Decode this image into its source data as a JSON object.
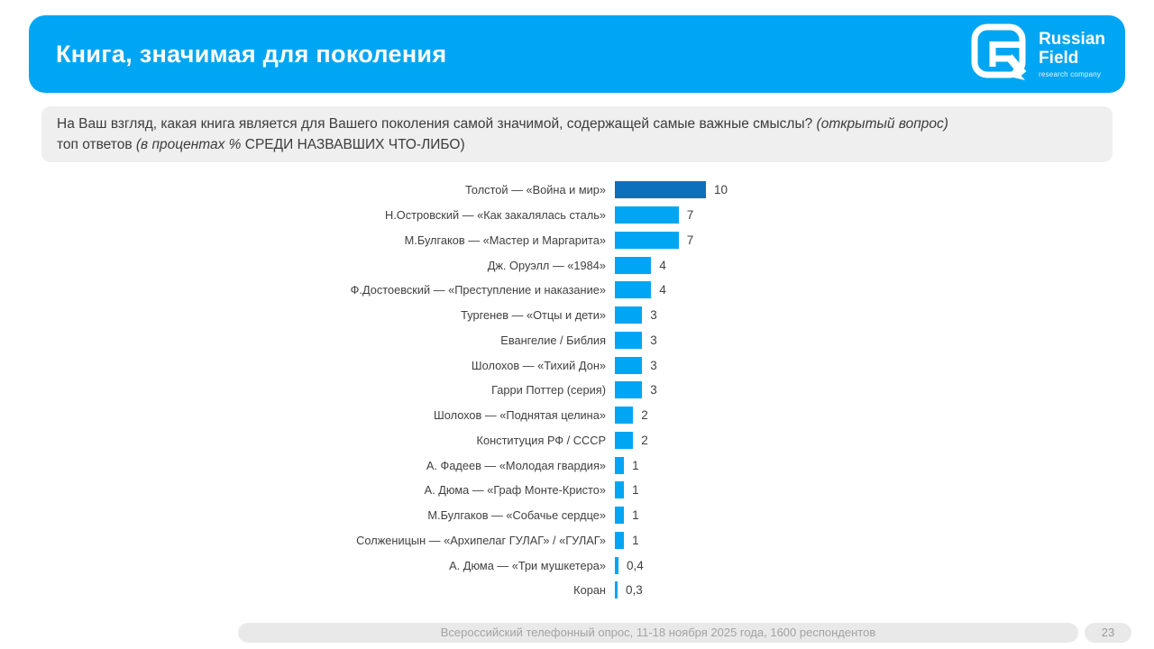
{
  "header": {
    "title": "Книга, значимая для поколения",
    "background_color": "#00a6f3",
    "logo": {
      "name_line1": "Russian",
      "name_line2": "Field",
      "tagline": "research company"
    }
  },
  "question": {
    "line1_text": "На Ваш взгляд, какая книга является для Вашего поколения самой значимой, содержащей самые важные смыслы? ",
    "line1_note": "(открытый вопрос)",
    "line2_text": "топ ответов ",
    "line2_italic": "(в процентах % ",
    "line2_caps": "СРЕДИ НАЗВАВШИХ ЧТО-ЛИБО)"
  },
  "chart_data": {
    "type": "bar",
    "orientation": "horizontal",
    "title": "Книга, значимая для поколения",
    "xlabel": "",
    "ylabel": "",
    "grid": false,
    "xlim": [
      0,
      12
    ],
    "categories": [
      "Толстой — «Война и мир»",
      "Н.Островский — «Как закалялась сталь»",
      "М.Булгаков — «Мастер и Маргарита»",
      "Дж. Оруэлл — «1984»",
      "Ф.Достоевский — «Преступление и наказание»",
      "Тургенев — «Отцы и дети»",
      "Евангелие / Библия",
      "Шолохов — «Тихий Дон»",
      "Гарри Поттер (серия)",
      "Шолохов — «Поднятая целина»",
      "Конституция РФ / СССР",
      "А. Фадеев — «Молодая гвардия»",
      "А. Дюма — «Граф Монте-Кристо»",
      "М.Булгаков — «Собачье сердце»",
      "Солженицын — «Архипелаг ГУЛАГ» / «ГУЛАГ»",
      "А. Дюма — «Три мушкетера»",
      "Коран"
    ],
    "values": [
      10,
      7,
      7,
      4,
      4,
      3,
      3,
      3,
      3,
      2,
      2,
      1,
      1,
      1,
      1,
      0.4,
      0.3
    ],
    "value_labels": [
      "10",
      "7",
      "7",
      "4",
      "4",
      "3",
      "3",
      "3",
      "3",
      "2",
      "2",
      "1",
      "1",
      "1",
      "1",
      "0,4",
      "0,3"
    ],
    "bar_color": "#00a6f3",
    "first_bar_color": "#0c70bd",
    "value_label_position": "end"
  },
  "footer": {
    "source": "Всероссийский телефонный опрос, 11-18 ноября 2025 года, 1600 респондентов",
    "page": "23"
  }
}
